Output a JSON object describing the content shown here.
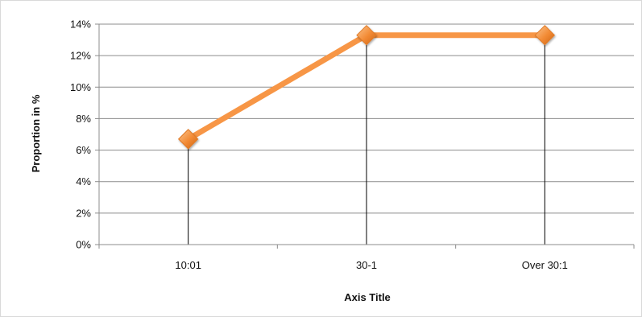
{
  "chart_data": {
    "type": "line",
    "title": "",
    "xlabel": "Axis Title",
    "ylabel": "Proportion in %",
    "categories": [
      "10:01",
      "30-1",
      "Over 30:1"
    ],
    "series": [
      {
        "values": [
          6.7,
          13.3,
          13.3
        ],
        "color": "#f79646"
      }
    ],
    "ylim": [
      0,
      14
    ],
    "yticks": [
      0,
      2,
      4,
      6,
      8,
      10,
      12,
      14
    ],
    "ytick_labels": [
      "0%",
      "2%",
      "4%",
      "6%",
      "8%",
      "10%",
      "12%",
      "14%"
    ],
    "grid": true,
    "drop_lines": true,
    "marker": "diamond",
    "legend": "none"
  }
}
